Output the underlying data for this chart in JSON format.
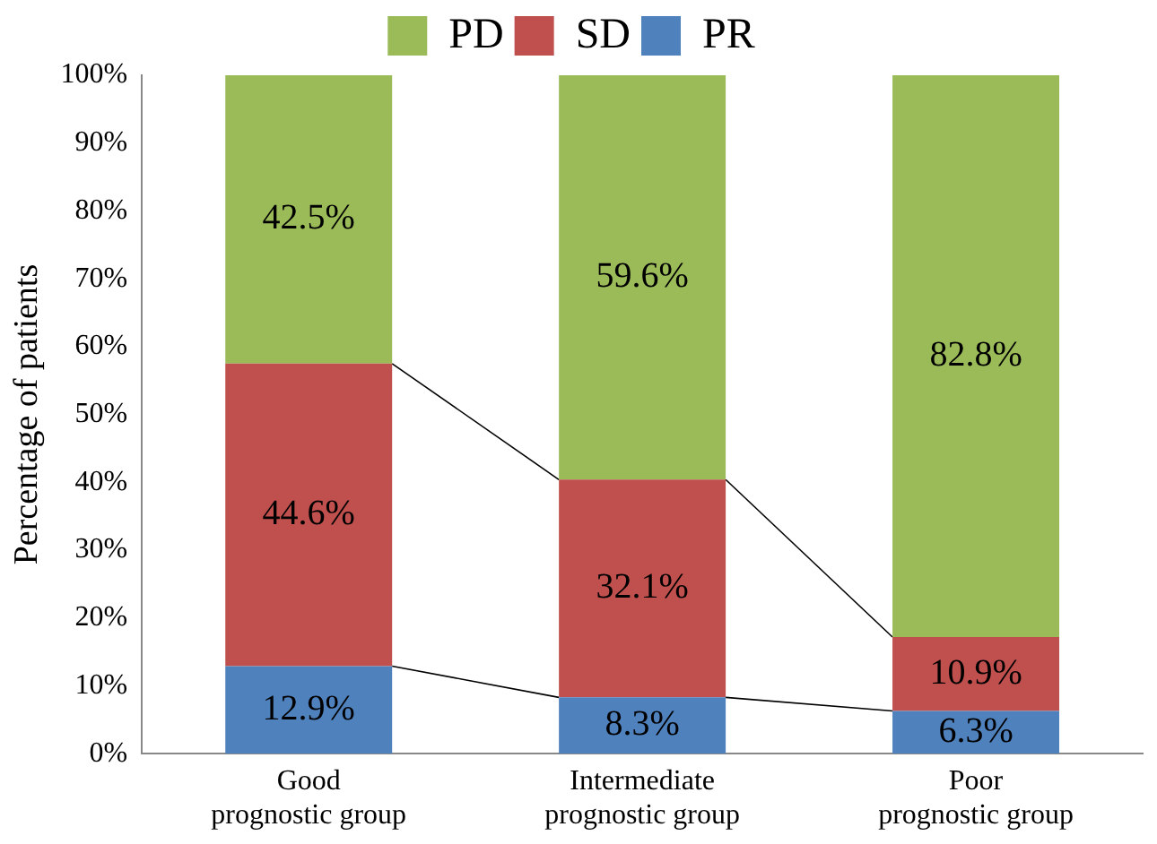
{
  "chart_data": {
    "type": "bar",
    "stacked": true,
    "ylabel": "Percentage of patients",
    "categories": [
      "Good prognostic group",
      "Intermediate prognostic group",
      "Poor prognostic group"
    ],
    "series": [
      {
        "name": "PR",
        "color": "#4f81bd",
        "values": [
          12.9,
          8.3,
          6.3
        ],
        "value_labels": [
          "12.9%",
          "8.3%",
          "6.3%"
        ]
      },
      {
        "name": "SD",
        "color": "#c0504d",
        "values": [
          44.6,
          32.1,
          10.9
        ],
        "value_labels": [
          "44.6%",
          "32.1%",
          "10.9%"
        ]
      },
      {
        "name": "PD",
        "color": "#9bbb59",
        "values": [
          42.5,
          59.6,
          82.8
        ],
        "value_labels": [
          "42.5%",
          "59.6%",
          "82.8%"
        ]
      }
    ],
    "ylim": [
      0,
      100
    ],
    "yticks": [
      {
        "value": 0,
        "label": "0%"
      },
      {
        "value": 10,
        "label": "10%"
      },
      {
        "value": 20,
        "label": "20%"
      },
      {
        "value": 30,
        "label": "30%"
      },
      {
        "value": 40,
        "label": "40%"
      },
      {
        "value": 50,
        "label": "50%"
      },
      {
        "value": 60,
        "label": "60%"
      },
      {
        "value": 70,
        "label": "70%"
      },
      {
        "value": 80,
        "label": "80%"
      },
      {
        "value": 90,
        "label": "90%"
      },
      {
        "value": 100,
        "label": "100%"
      }
    ],
    "grid": false,
    "legend": "top"
  }
}
